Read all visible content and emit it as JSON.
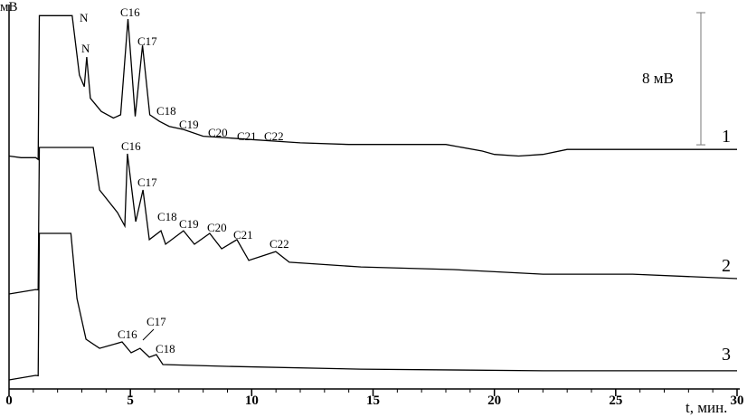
{
  "chart_data": {
    "type": "line",
    "xlabel": "t, мин.",
    "ylabel": "мВ",
    "xlim": [
      0,
      30
    ],
    "xticks": [
      0,
      5,
      10,
      15,
      20,
      25,
      30
    ],
    "ylim": [
      0,
      23
    ],
    "scale_bar": {
      "value": 8,
      "label": "8 мВ"
    },
    "series": [
      {
        "name": "1",
        "color": "#000000",
        "x": [
          0,
          0.5,
          1.1,
          1.2,
          1.25,
          2.6,
          2.9,
          3.1,
          3.2,
          3.35,
          3.8,
          4.3,
          4.6,
          4.9,
          5.2,
          5.5,
          5.8,
          6.2,
          6.6,
          7.2,
          8,
          9,
          10,
          11,
          12,
          14,
          16,
          18,
          19.5,
          20,
          21,
          22,
          23,
          25,
          27,
          30
        ],
        "values": [
          14.1,
          14.0,
          14.0,
          13.9,
          22.6,
          22.6,
          19.0,
          18.3,
          20.1,
          17.6,
          16.8,
          16.4,
          16.6,
          22.4,
          16.5,
          20.8,
          16.6,
          16.2,
          15.9,
          15.7,
          15.3,
          15.2,
          15.1,
          15.0,
          14.9,
          14.8,
          14.8,
          14.8,
          14.4,
          14.2,
          14.1,
          14.2,
          14.5,
          14.5,
          14.5,
          14.5
        ],
        "peaks": [
          "N",
          "N",
          "C16",
          "C17",
          "C18",
          "C19",
          "C20",
          "C21",
          "C22"
        ]
      },
      {
        "name": "2",
        "color": "#000000",
        "x": [
          0,
          1.1,
          1.2,
          1.25,
          3.47,
          3.73,
          4.47,
          4.77,
          4.88,
          5.22,
          5.52,
          5.78,
          6.26,
          6.45,
          7.19,
          7.64,
          8.27,
          8.76,
          9.39,
          9.88,
          10.99,
          11.55,
          14.5,
          18.3,
          22.0,
          25.7,
          30
        ],
        "values": [
          5.75,
          6.02,
          6.0,
          14.62,
          14.62,
          12.05,
          10.68,
          9.86,
          14.24,
          10.13,
          12.05,
          9.04,
          9.58,
          8.76,
          9.58,
          8.76,
          9.42,
          8.49,
          9.04,
          7.78,
          8.32,
          7.67,
          7.39,
          7.23,
          6.95,
          6.95,
          6.68
        ],
        "peaks": [
          "C16",
          "C17",
          "C18",
          "C19",
          "C20",
          "C21",
          "C22"
        ]
      },
      {
        "name": "3",
        "color": "#000000",
        "x": [
          0,
          1.1,
          1.2,
          1.25,
          2.55,
          2.8,
          3.17,
          3.73,
          4.66,
          5.03,
          5.4,
          5.78,
          6.07,
          6.34,
          8.95,
          14.5,
          22.0,
          30
        ],
        "values": [
          0.55,
          0.82,
          0.8,
          9.42,
          9.42,
          5.48,
          3.01,
          2.46,
          2.85,
          2.19,
          2.46,
          1.92,
          2.08,
          1.48,
          1.37,
          1.2,
          1.1,
          1.1
        ],
        "peaks": [
          "C16",
          "C17",
          "C18"
        ]
      }
    ]
  }
}
